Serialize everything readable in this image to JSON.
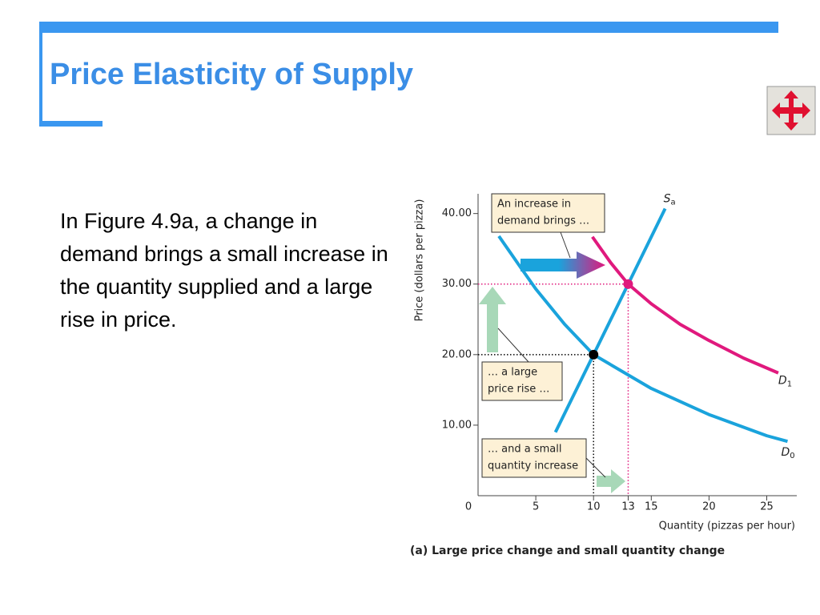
{
  "title": "Price Elasticity of Supply",
  "body": "In Figure 4.9a, a change in demand brings a small increase in the quantity supplied and a large rise in price.",
  "chart_data": {
    "type": "line",
    "x_label": "Quantity (pizzas per hour)",
    "y_label": "Price (dollars per pizza)",
    "caption": "(a) Large price change and small quantity change",
    "xlim": [
      0,
      27.6
    ],
    "ylim": [
      0,
      42.8
    ],
    "xticks": [
      0,
      5,
      10,
      13,
      15,
      20,
      25
    ],
    "yticks": [
      {
        "value": 10,
        "label": "10.00"
      },
      {
        "value": 20,
        "label": "20.00"
      },
      {
        "value": 30,
        "label": "30.00"
      },
      {
        "value": 40,
        "label": "40.00"
      }
    ],
    "series": [
      {
        "name": "S",
        "subscript": "a",
        "color": "#1aa3dc",
        "x": [
          6.7,
          10,
          13,
          16.2
        ],
        "values": [
          9,
          20,
          30,
          40.7
        ]
      },
      {
        "name": "D",
        "subscript": "0",
        "color": "#1aa3dc",
        "x": [
          1.8,
          3.5,
          5,
          7.5,
          10,
          15,
          20,
          25,
          26.8
        ],
        "values": [
          36.8,
          32.8,
          29.3,
          24.3,
          20,
          15.2,
          11.5,
          8.5,
          7.7
        ]
      },
      {
        "name": "D",
        "subscript": "1",
        "color": "#e0197d",
        "x": [
          9.9,
          11.5,
          13,
          15,
          17.5,
          20,
          23,
          26
        ],
        "values": [
          36.7,
          33,
          30,
          27.2,
          24.3,
          22,
          19.5,
          17.4
        ]
      }
    ],
    "equilibria": [
      {
        "x": 10,
        "y": 20,
        "color": "#000000"
      },
      {
        "x": 13,
        "y": 30,
        "color": "#e0197d"
      }
    ],
    "annotations": [
      {
        "lines": [
          "An increase in",
          "demand brings …"
        ]
      },
      {
        "lines": [
          "… a large",
          "price rise …"
        ]
      },
      {
        "lines": [
          "… and a small",
          "quantity increase"
        ]
      }
    ]
  }
}
